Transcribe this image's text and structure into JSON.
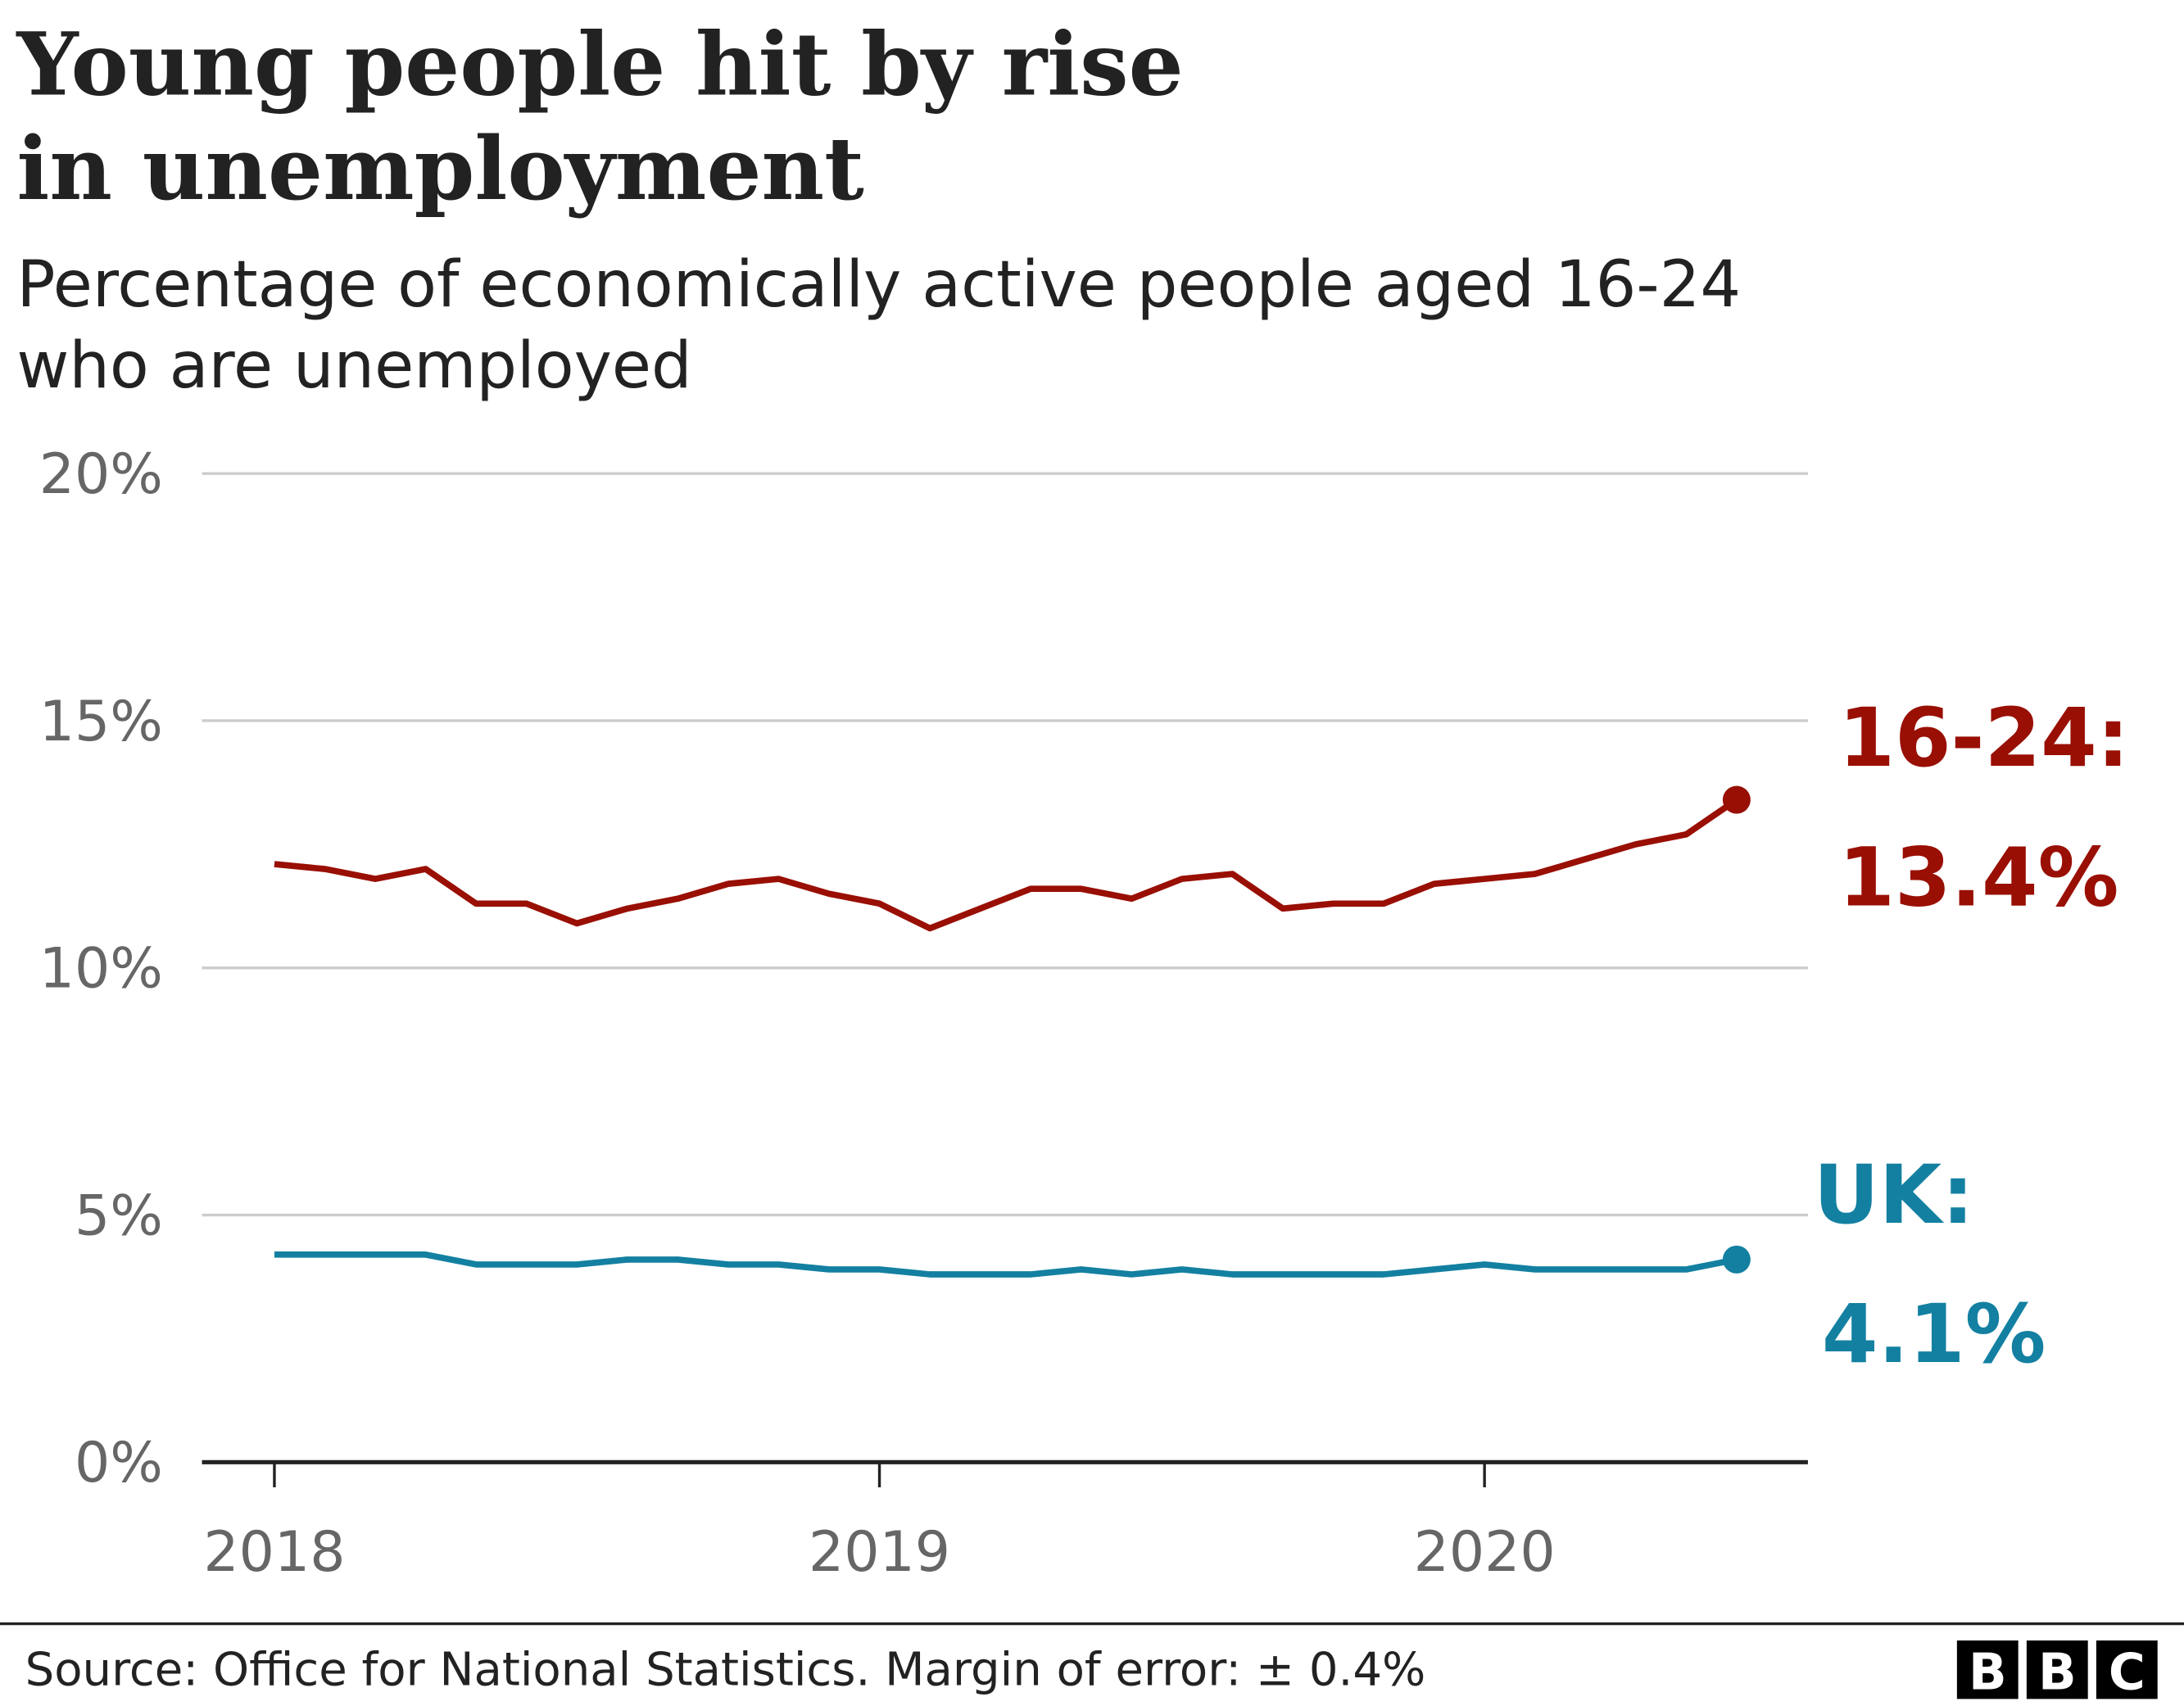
{
  "chart_data": {
    "type": "line",
    "title": "Young people hit by rise in unemployment",
    "title_lines": [
      "Young people hit by rise",
      "in unemployment"
    ],
    "subtitle_lines": [
      "Percentage of economically active people aged 16-24",
      "who are unemployed"
    ],
    "x_start": "2018-01",
    "x_end": "2020-06",
    "x_ticks": [
      "2018",
      "2019",
      "2020"
    ],
    "y_ticks": [
      "0%",
      "5%",
      "10%",
      "15%",
      "20%"
    ],
    "ylim": [
      0,
      20
    ],
    "grid": true,
    "series": [
      {
        "name": "16-24",
        "label": "16-24:",
        "value_label": "13.4%",
        "color": "#990f04",
        "values": [
          12.1,
          12.0,
          11.8,
          12.0,
          11.3,
          11.3,
          10.9,
          11.2,
          11.4,
          11.7,
          11.8,
          11.5,
          11.3,
          10.8,
          11.2,
          11.6,
          11.6,
          11.4,
          11.8,
          11.9,
          11.2,
          11.3,
          11.3,
          11.7,
          11.8,
          11.9,
          12.2,
          12.5,
          12.7,
          13.4
        ]
      },
      {
        "name": "UK",
        "label": "UK:",
        "value_label": "4.1%",
        "color": "#1380a1",
        "values": [
          4.2,
          4.2,
          4.2,
          4.2,
          4.0,
          4.0,
          4.0,
          4.1,
          4.1,
          4.0,
          4.0,
          3.9,
          3.9,
          3.8,
          3.8,
          3.8,
          3.9,
          3.8,
          3.9,
          3.8,
          3.8,
          3.8,
          3.8,
          3.9,
          4.0,
          3.9,
          3.9,
          3.9,
          3.9,
          4.1
        ]
      }
    ],
    "source": "Source: Office for National Statistics. Margin of error: ± 0.4%",
    "logo": "BBC"
  }
}
